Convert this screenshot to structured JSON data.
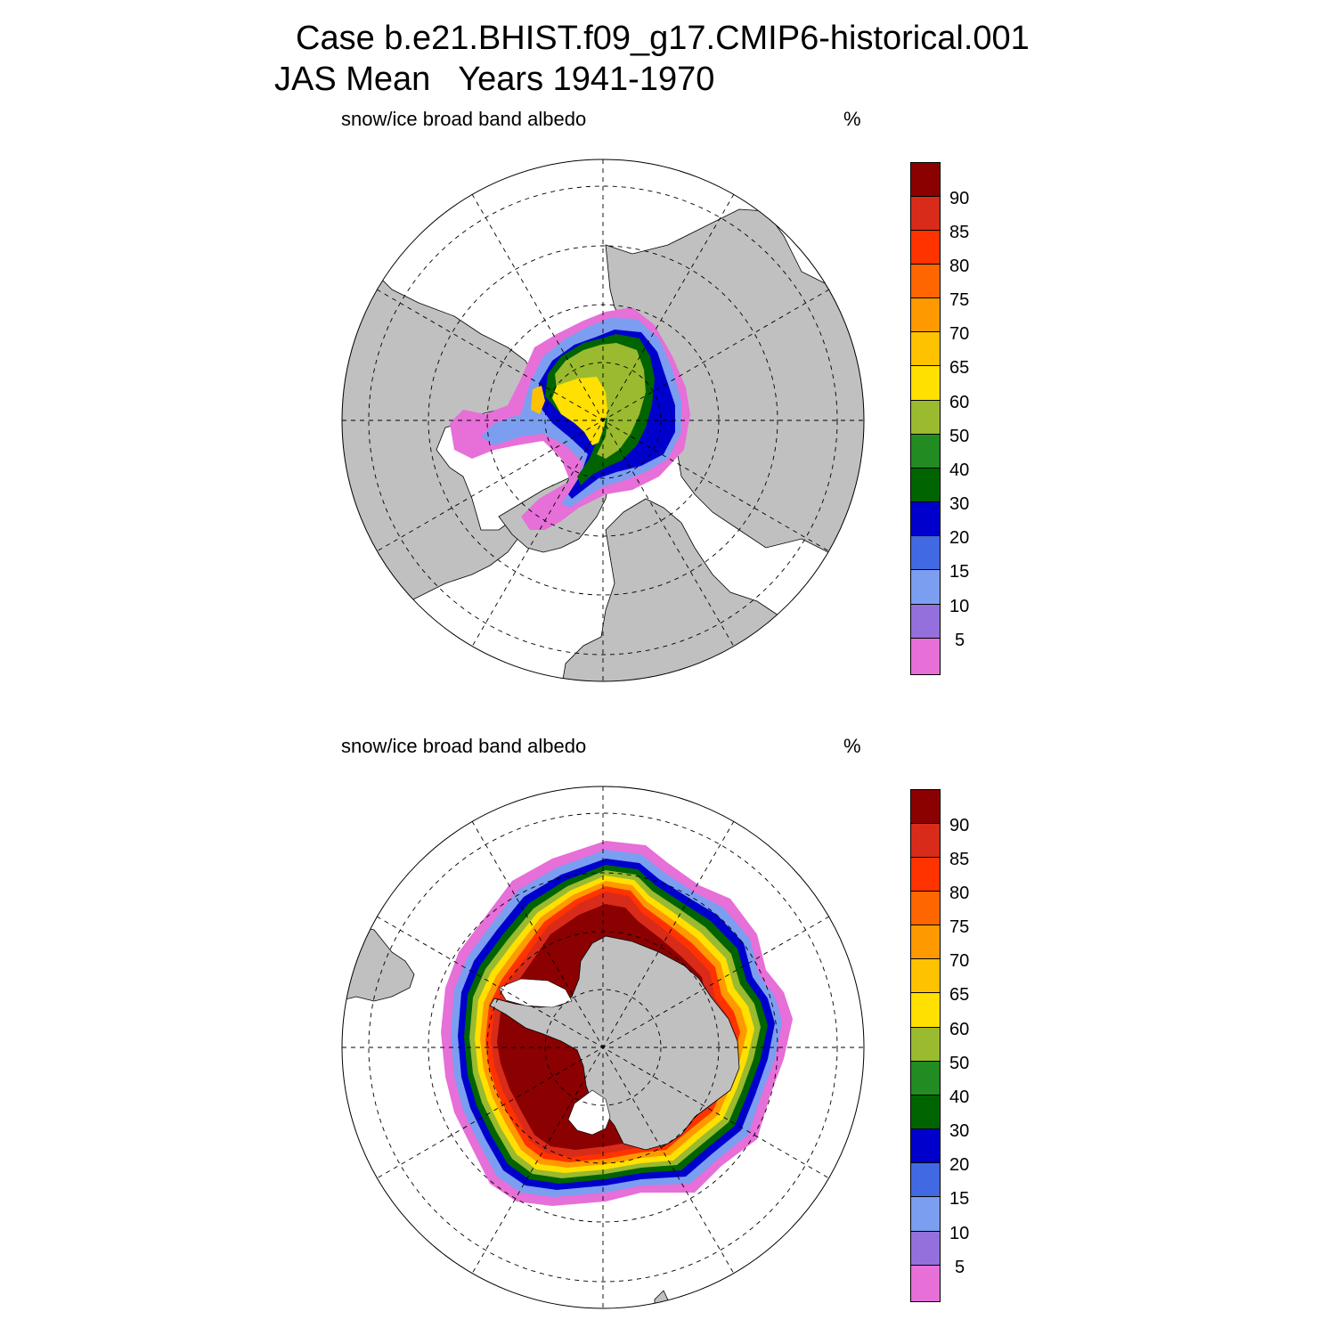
{
  "title": {
    "case": "Case b.e21.BHIST.f09_g17.CMIP6-historical.001",
    "period": "JAS Mean   Years 1941-1970"
  },
  "legend": {
    "colors": [
      "#e66fd8",
      "#9370db",
      "#7b9ef0",
      "#4169e1",
      "#0000cd",
      "#006400",
      "#228b22",
      "#9aba2f",
      "#ffe000",
      "#ffc200",
      "#ff9900",
      "#ff6600",
      "#ff3300",
      "#d92b1a",
      "#8b0000"
    ],
    "labels": [
      "5",
      "10",
      "15",
      "20",
      "30",
      "40",
      "50",
      "60",
      "65",
      "70",
      "75",
      "80",
      "85",
      "90"
    ]
  },
  "land_color": "#c0c0c0",
  "panels": [
    {
      "id": "north",
      "label": "snow/ice broad band albedo",
      "unit": "%",
      "hemisphere": "Northern"
    },
    {
      "id": "south",
      "label": "snow/ice broad band albedo",
      "unit": "%",
      "hemisphere": "Southern"
    }
  ]
}
